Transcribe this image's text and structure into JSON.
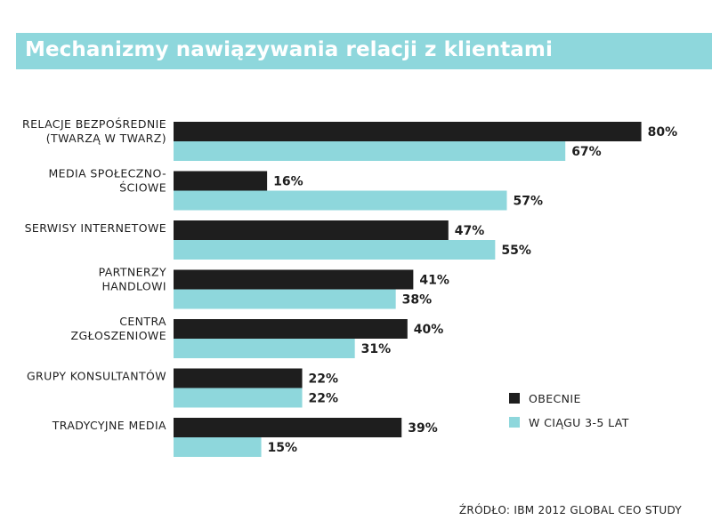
{
  "chart_data": {
    "type": "bar",
    "orientation": "horizontal",
    "title": "Mechanizmy nawiązywania relacji z klientami",
    "categories": [
      [
        "RELACJE BEZPOŚREDNIE",
        "(TWARZĄ W TWARZ)"
      ],
      [
        "MEDIA SPOŁECZNO-",
        "ŚCIOWE"
      ],
      [
        "SERWISY INTERNETOWE"
      ],
      [
        "PARTNERZY",
        "HANDLOWI"
      ],
      [
        "CENTRA",
        "ZGŁOSZENIOWE"
      ],
      [
        "GRUPY KONSULTANTÓW"
      ],
      [
        "TRADYCYJNE MEDIA"
      ]
    ],
    "series": [
      {
        "name": "OBECNIE",
        "color": "#1e1e1e",
        "values": [
          80,
          16,
          47,
          41,
          40,
          22,
          39
        ]
      },
      {
        "name": "W CIĄGU 3-5 LAT",
        "color": "#8ed7dc",
        "values": [
          67,
          57,
          55,
          38,
          31,
          22,
          15
        ]
      }
    ],
    "value_suffix": "%",
    "xlim": [
      0,
      100
    ],
    "grid": false,
    "legend": "bottom-right"
  },
  "source_text": "ŹRÓDŁO: IBM 2012 GLOBAL CEO STUDY"
}
